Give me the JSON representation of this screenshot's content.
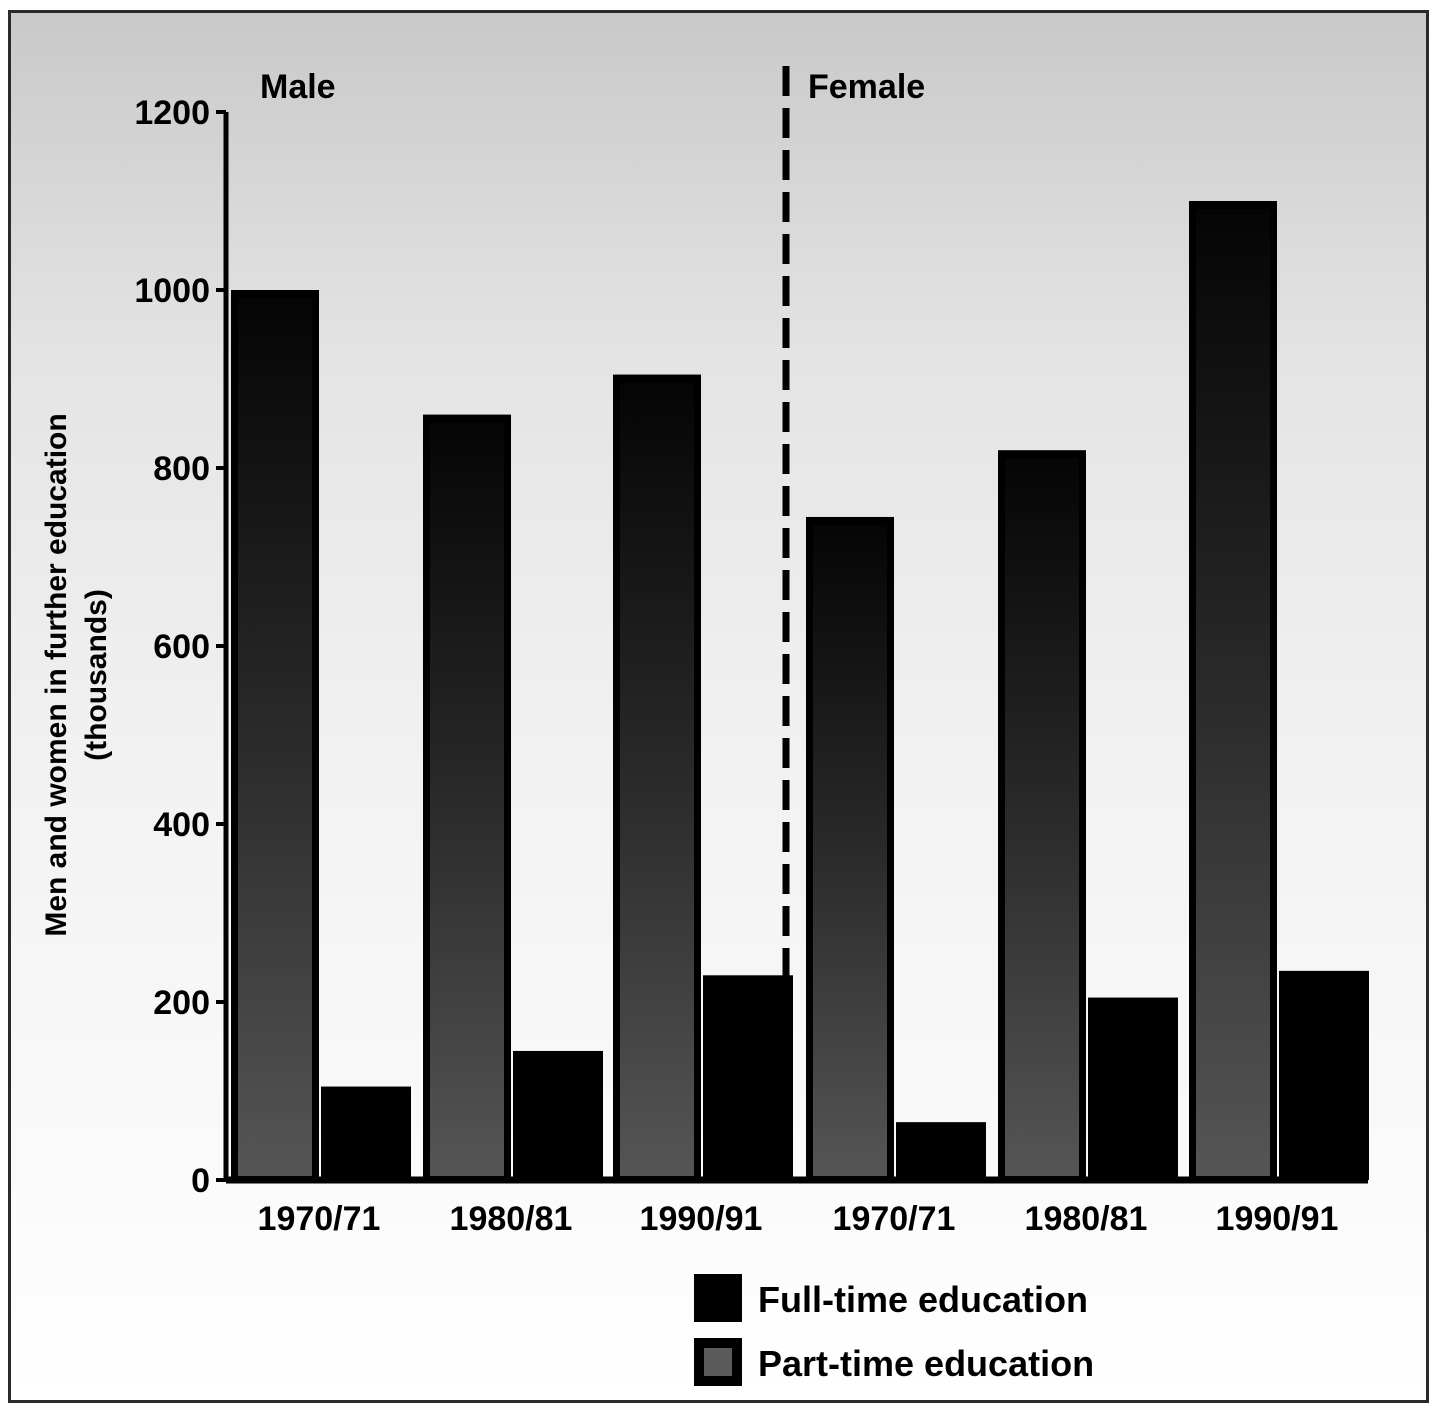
{
  "chart_data": {
    "type": "bar",
    "ylabel_line1": "Men and women in further education",
    "ylabel_line2": "(thousands)",
    "ylim": [
      0,
      1200
    ],
    "yticks": [
      0,
      200,
      400,
      600,
      800,
      1000,
      1200
    ],
    "grid": false,
    "legend_position": "bottom-right",
    "panels": [
      {
        "name": "Male",
        "categories": [
          "1970/71",
          "1980/81",
          "1990/91"
        ],
        "series": [
          {
            "name": "Part-time education",
            "values": [
              1000,
              860,
              905
            ]
          },
          {
            "name": "Full-time education",
            "values": [
              105,
              145,
              230
            ]
          }
        ]
      },
      {
        "name": "Female",
        "categories": [
          "1970/71",
          "1980/81",
          "1990/91"
        ],
        "series": [
          {
            "name": "Part-time education",
            "values": [
              745,
              820,
              1100
            ]
          },
          {
            "name": "Full-time education",
            "values": [
              65,
              205,
              235
            ]
          }
        ]
      }
    ],
    "legend": [
      {
        "name": "Full-time education",
        "color": "#000000"
      },
      {
        "name": "Part-time education",
        "color": "#4a4a4a"
      }
    ]
  }
}
